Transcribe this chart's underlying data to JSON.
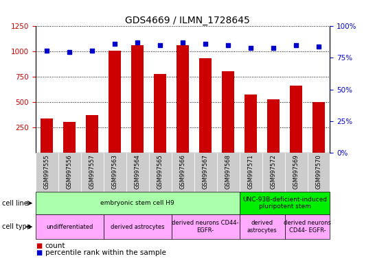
{
  "title": "GDS4669 / ILMN_1728645",
  "samples": [
    "GSM997555",
    "GSM997556",
    "GSM997557",
    "GSM997563",
    "GSM997564",
    "GSM997565",
    "GSM997566",
    "GSM997567",
    "GSM997568",
    "GSM997571",
    "GSM997572",
    "GSM997569",
    "GSM997570"
  ],
  "counts": [
    335,
    305,
    370,
    1010,
    1060,
    775,
    1060,
    935,
    805,
    575,
    530,
    665,
    500
  ],
  "percentiles": [
    80.5,
    79.5,
    80.5,
    86,
    87,
    85,
    87,
    86,
    85,
    83,
    83,
    85,
    84
  ],
  "left_ylim": [
    0,
    1250
  ],
  "left_yticks": [
    250,
    500,
    750,
    1000,
    1250
  ],
  "right_ylim": [
    0,
    100
  ],
  "right_yticks": [
    0,
    25,
    50,
    75,
    100
  ],
  "bar_color": "#cc0000",
  "dot_color": "#0000cc",
  "bar_width": 0.55,
  "cell_line_groups": [
    {
      "label": "embryonic stem cell H9",
      "start": 0,
      "end": 9,
      "color": "#aaffaa"
    },
    {
      "label": "UNC-93B-deficient-induced\npluripotent stem",
      "start": 9,
      "end": 13,
      "color": "#00ee00"
    }
  ],
  "cell_type_groups": [
    {
      "label": "undifferentiated",
      "start": 0,
      "end": 3,
      "color": "#ffaaff"
    },
    {
      "label": "derived astrocytes",
      "start": 3,
      "end": 6,
      "color": "#ffaaff"
    },
    {
      "label": "derived neurons CD44-\nEGFR-",
      "start": 6,
      "end": 9,
      "color": "#ffaaff"
    },
    {
      "label": "derived\nastrocytes",
      "start": 9,
      "end": 11,
      "color": "#ffaaff"
    },
    {
      "label": "derived neurons\nCD44- EGFR-",
      "start": 11,
      "end": 13,
      "color": "#ffaaff"
    }
  ],
  "legend_count_color": "#cc0000",
  "legend_pct_color": "#0000cc",
  "ylabel_left_color": "#cc0000",
  "ylabel_right_color": "#0000cc",
  "grid_color": "black",
  "bg_tick_color": "#cccccc",
  "title_fontsize": 10,
  "tick_label_fontsize": 6,
  "ytick_fontsize": 7.5,
  "annotation_fontsize": 6.5,
  "legend_fontsize": 7.5
}
